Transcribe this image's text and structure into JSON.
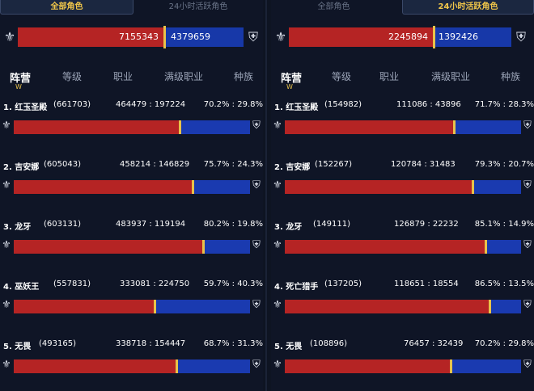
{
  "colors": {
    "horde": "#b52424",
    "alliance": "#1738a8",
    "gold": "#e8c24a"
  },
  "icons": {
    "horde": "horde-emblem-icon",
    "alliance": "alliance-emblem-icon"
  },
  "left": {
    "tabs": [
      {
        "label": "全部角色",
        "active": true
      },
      {
        "label": "24小时活跃角色",
        "active": false
      }
    ],
    "horde_total": "7155343",
    "alliance_total": "4379659",
    "horde_share": 0.62,
    "nav": [
      "阵营",
      "等级",
      "职业",
      "满级职业",
      "种族"
    ],
    "rows": [
      {
        "title": "1. 红玉圣殿",
        "count": "(661703)",
        "ratio": "464479 : 197224",
        "pct": "70.2% : 29.8%",
        "horde": 0.702
      },
      {
        "title": "2. 吉安娜",
        "count": "(605043)",
        "ratio": "458214 : 146829",
        "pct": "75.7% : 24.3%",
        "horde": 0.757
      },
      {
        "title": "3. 龙牙",
        "count": "(603131)",
        "ratio": "483937 : 119194",
        "pct": "80.2% : 19.8%",
        "horde": 0.802
      },
      {
        "title": "4. 巫妖王",
        "count": "(557831)",
        "ratio": "333081 : 224750",
        "pct": "59.7% : 40.3%",
        "horde": 0.597
      },
      {
        "title": "5. 无畏",
        "count": "(493165)",
        "ratio": "338718 : 154447",
        "pct": "68.7% : 31.3%",
        "horde": 0.687
      }
    ]
  },
  "right": {
    "tabs": [
      {
        "label": "全部角色",
        "active": false
      },
      {
        "label": "24小时活跃角色",
        "active": true
      }
    ],
    "horde_total": "2245894",
    "alliance_total": "1392426",
    "horde_share": 0.617,
    "nav": [
      "阵营",
      "等级",
      "职业",
      "满级职业",
      "种族"
    ],
    "rows": [
      {
        "title": "1. 红玉圣殿",
        "count": "(154982)",
        "ratio": "111086 : 43896",
        "pct": "71.7% : 28.3%",
        "horde": 0.717
      },
      {
        "title": "2. 吉安娜",
        "count": "(152267)",
        "ratio": "120784 : 31483",
        "pct": "79.3% : 20.7%",
        "horde": 0.793
      },
      {
        "title": "3. 龙牙",
        "count": "(149111)",
        "ratio": "126879 : 22232",
        "pct": "85.1% : 14.9%",
        "horde": 0.851
      },
      {
        "title": "4. 死亡猎手",
        "count": "(137205)",
        "ratio": "118651 : 18554",
        "pct": "86.5% : 13.5%",
        "horde": 0.865
      },
      {
        "title": "5. 无畏",
        "count": "(108896)",
        "ratio": "76457 : 32439",
        "pct": "70.2% : 29.8%",
        "horde": 0.702
      }
    ]
  }
}
